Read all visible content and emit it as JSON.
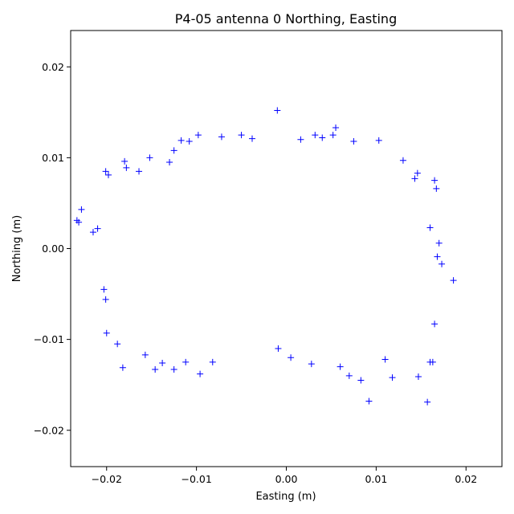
{
  "chart_data": {
    "type": "scatter",
    "title": "P4-05 antenna 0 Northing, Easting",
    "xlabel": "Easting (m)",
    "ylabel": "Northing (m)",
    "xlim": [
      -0.024,
      0.024
    ],
    "ylim": [
      -0.024,
      0.024
    ],
    "xticks": [
      -0.02,
      -0.01,
      0.0,
      0.01,
      0.02
    ],
    "xtick_labels": [
      "−0.02",
      "−0.01",
      "0.00",
      "0.01",
      "0.02"
    ],
    "yticks": [
      -0.02,
      -0.01,
      0.0,
      0.01,
      0.02
    ],
    "ytick_labels": [
      "−0.02",
      "−0.01",
      "0.00",
      "0.01",
      "0.02"
    ],
    "grid": false,
    "marker": "+",
    "color": "#0000ff",
    "series": [
      {
        "points": [
          [
            -0.0233,
            0.0031
          ],
          [
            -0.0228,
            0.0043
          ],
          [
            -0.0231,
            0.0029
          ],
          [
            -0.0215,
            0.0018
          ],
          [
            -0.021,
            0.0022
          ],
          [
            -0.0201,
            0.0085
          ],
          [
            -0.0198,
            0.0081
          ],
          [
            -0.0203,
            -0.0045
          ],
          [
            -0.0201,
            -0.0056
          ],
          [
            -0.02,
            -0.0093
          ],
          [
            -0.0188,
            -0.0105
          ],
          [
            -0.0182,
            -0.0131
          ],
          [
            -0.018,
            0.0096
          ],
          [
            -0.0178,
            0.0089
          ],
          [
            -0.0164,
            0.0085
          ],
          [
            -0.0152,
            0.01
          ],
          [
            -0.0157,
            -0.0117
          ],
          [
            -0.0146,
            -0.0133
          ],
          [
            -0.0138,
            -0.0126
          ],
          [
            -0.013,
            0.0095
          ],
          [
            -0.0125,
            0.0108
          ],
          [
            -0.0125,
            -0.0133
          ],
          [
            -0.0117,
            0.0119
          ],
          [
            -0.0112,
            -0.0125
          ],
          [
            -0.0108,
            0.0118
          ],
          [
            -0.0098,
            0.0125
          ],
          [
            -0.0096,
            -0.0138
          ],
          [
            -0.0082,
            -0.0125
          ],
          [
            -0.0072,
            0.0123
          ],
          [
            -0.005,
            0.0125
          ],
          [
            -0.0038,
            0.0121
          ],
          [
            -0.001,
            0.0152
          ],
          [
            -0.0009,
            -0.011
          ],
          [
            0.0005,
            -0.012
          ],
          [
            0.0016,
            0.012
          ],
          [
            0.0028,
            -0.0127
          ],
          [
            0.0032,
            0.0125
          ],
          [
            0.004,
            0.0122
          ],
          [
            0.0052,
            0.0125
          ],
          [
            0.0055,
            0.0133
          ],
          [
            0.006,
            -0.013
          ],
          [
            0.007,
            -0.014
          ],
          [
            0.0075,
            0.0118
          ],
          [
            0.0083,
            -0.0145
          ],
          [
            0.0092,
            -0.0168
          ],
          [
            0.0103,
            0.0119
          ],
          [
            0.011,
            -0.0122
          ],
          [
            0.0118,
            -0.0142
          ],
          [
            0.013,
            0.0097
          ],
          [
            0.0143,
            0.0077
          ],
          [
            0.0146,
            0.0083
          ],
          [
            0.0147,
            -0.0141
          ],
          [
            0.0157,
            -0.0169
          ],
          [
            0.016,
            -0.0125
          ],
          [
            0.0163,
            -0.0125
          ],
          [
            0.0165,
            0.0075
          ],
          [
            0.0167,
            0.0066
          ],
          [
            0.0173,
            -0.0017
          ],
          [
            0.0186,
            -0.0035
          ],
          [
            0.017,
            0.0006
          ],
          [
            0.0168,
            -0.0009
          ],
          [
            0.016,
            0.0023
          ],
          [
            0.0165,
            -0.0083
          ]
        ]
      }
    ]
  }
}
